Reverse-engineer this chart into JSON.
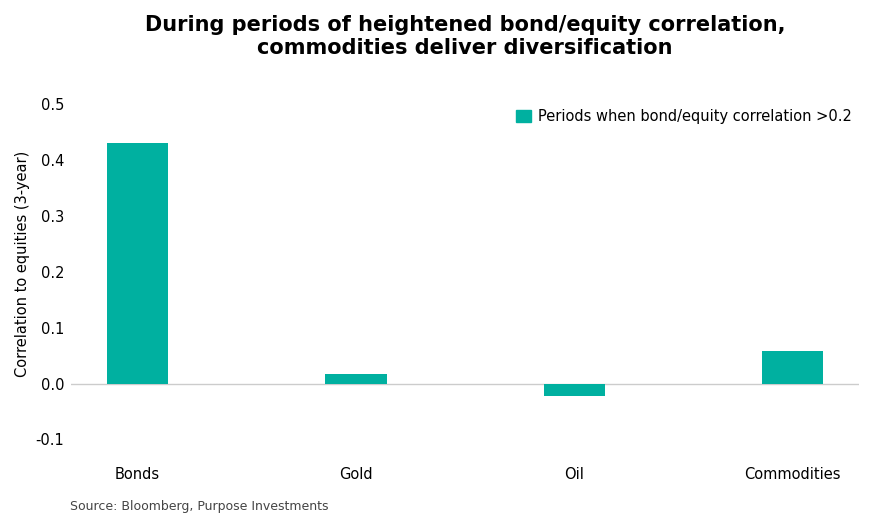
{
  "title": "During periods of heightened bond/equity correlation,\ncommodities deliver diversification",
  "categories": [
    "Bonds",
    "Gold",
    "Oil",
    "Commodities"
  ],
  "values": [
    0.43,
    0.018,
    -0.022,
    0.058
  ],
  "bar_color": "#00B0A0",
  "ylabel": "Correlation to equities (3-year)",
  "ylim": [
    -0.13,
    0.56
  ],
  "yticks": [
    -0.1,
    0.0,
    0.1,
    0.2,
    0.3,
    0.4,
    0.5
  ],
  "legend_label": "Periods when bond/equity correlation >0.2",
  "source": "Source: Bloomberg, Purpose Investments",
  "background_color": "#ffffff",
  "title_fontsize": 15,
  "label_fontsize": 10.5,
  "tick_fontsize": 10.5,
  "source_fontsize": 9
}
